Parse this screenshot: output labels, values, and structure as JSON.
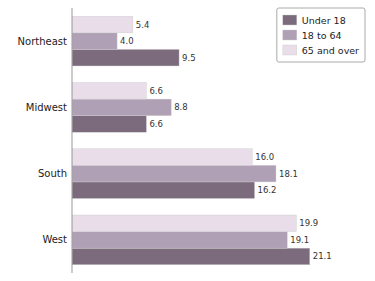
{
  "chart_data": {
    "type": "bar",
    "orientation": "horizontal",
    "categories": [
      "West",
      "South",
      "Midwest",
      "Northeast"
    ],
    "series": [
      {
        "name": "Under 18",
        "color": "#7b6b7d",
        "values": [
          21.1,
          16.2,
          6.6,
          9.5
        ],
        "value_labels": [
          "21.1",
          "16.2",
          "6.6",
          "9.5"
        ]
      },
      {
        "name": "18 to 64",
        "color": "#b0a0b5",
        "values": [
          19.1,
          18.1,
          8.8,
          4.0
        ],
        "value_labels": [
          "19.1",
          "18.1",
          "8.8",
          "4.0"
        ]
      },
      {
        "name": "65 and over",
        "color": "#e8dde8",
        "values": [
          19.9,
          16.0,
          6.6,
          5.4
        ],
        "value_labels": [
          "19.9",
          "16.0",
          "6.6",
          "5.4"
        ]
      }
    ],
    "xlim": [
      0,
      26
    ],
    "tick_labels": "y",
    "grid": false,
    "data_labels": true,
    "legend": "upper right"
  }
}
